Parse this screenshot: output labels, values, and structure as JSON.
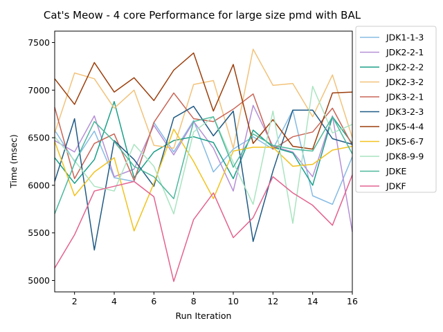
{
  "chart_data": {
    "type": "line",
    "title": "Cat's Meow - 4 core Performance for large size pmd with BAL",
    "xlabel": "Run Iteration",
    "ylabel": "Time (msec)",
    "xlim": [
      1,
      16
    ],
    "ylim": [
      4880,
      7620
    ],
    "xticks": [
      2,
      4,
      6,
      8,
      10,
      12,
      14,
      16
    ],
    "yticks": [
      5000,
      5500,
      6000,
      6500,
      7000,
      7500
    ],
    "grid": false,
    "legend_position": "outside-right",
    "x": [
      1,
      2,
      3,
      4,
      5,
      6,
      7,
      8,
      9,
      10,
      11,
      12,
      13,
      14,
      15,
      16
    ],
    "series": [
      {
        "name": "JDK1-1-3",
        "color": "#85bbe3",
        "values": [
          6580,
          6250,
          6570,
          6080,
          6040,
          6660,
          6350,
          6680,
          6140,
          6380,
          6510,
          6380,
          6790,
          5890,
          5800,
          6300
        ]
      },
      {
        "name": "JDK2-2-1",
        "color": "#b58fd6",
        "values": [
          6470,
          6350,
          6730,
          6090,
          6170,
          6630,
          6320,
          6670,
          6390,
          5940,
          6840,
          6410,
          6350,
          6090,
          6730,
          5510
        ]
      },
      {
        "name": "JDK2-2-2",
        "color": "#1b9f88",
        "values": [
          6290,
          6020,
          6270,
          6880,
          6080,
          6350,
          6470,
          6510,
          6450,
          6070,
          6580,
          6400,
          6340,
          6000,
          6720,
          6440
        ]
      },
      {
        "name": "JDK2-3-2",
        "color": "#f2c27a",
        "values": [
          6550,
          7180,
          7120,
          6810,
          7000,
          6420,
          6390,
          7060,
          7100,
          6390,
          7430,
          7050,
          7070,
          6720,
          7160,
          6500
        ]
      },
      {
        "name": "JDK3-2-1",
        "color": "#c86556",
        "values": [
          6820,
          6070,
          6440,
          6540,
          6050,
          6660,
          6970,
          6700,
          6670,
          6800,
          6960,
          6380,
          6510,
          6560,
          6810,
          6420
        ]
      },
      {
        "name": "JDK3-2-3",
        "color": "#1f5a84",
        "values": [
          6040,
          6700,
          5320,
          6470,
          6270,
          5990,
          6710,
          6830,
          6520,
          6780,
          5410,
          6150,
          6790,
          6790,
          6490,
          6430
        ]
      },
      {
        "name": "JDK5-4-4",
        "color": "#9b3e0b",
        "values": [
          7120,
          6850,
          7290,
          6980,
          7130,
          6890,
          7210,
          7390,
          6780,
          7270,
          6440,
          6690,
          6410,
          6380,
          6970,
          6980
        ]
      },
      {
        "name": "JDK5-6-7",
        "color": "#f2c21d",
        "values": [
          6460,
          5890,
          6140,
          6290,
          5520,
          6020,
          6590,
          6250,
          5860,
          6360,
          6400,
          6400,
          6200,
          6220,
          6370,
          6410
        ]
      },
      {
        "name": "JDK8-9-9",
        "color": "#a9e4c0",
        "values": [
          6510,
          6260,
          5990,
          5940,
          6430,
          6200,
          5700,
          6560,
          6720,
          6240,
          5800,
          6780,
          5600,
          7040,
          6550,
          6640
        ]
      },
      {
        "name": "JDKE",
        "color": "#4db89c",
        "values": [
          5700,
          6230,
          6670,
          6460,
          6200,
          6090,
          5860,
          6670,
          6720,
          6190,
          6540,
          6420,
          6380,
          6360,
          6720,
          6330
        ]
      },
      {
        "name": "JDKF",
        "color": "#e4628f",
        "values": [
          5130,
          5480,
          5940,
          5990,
          6040,
          5880,
          4990,
          5640,
          5920,
          5450,
          5660,
          6090,
          5920,
          5790,
          5580,
          6110
        ]
      }
    ]
  }
}
